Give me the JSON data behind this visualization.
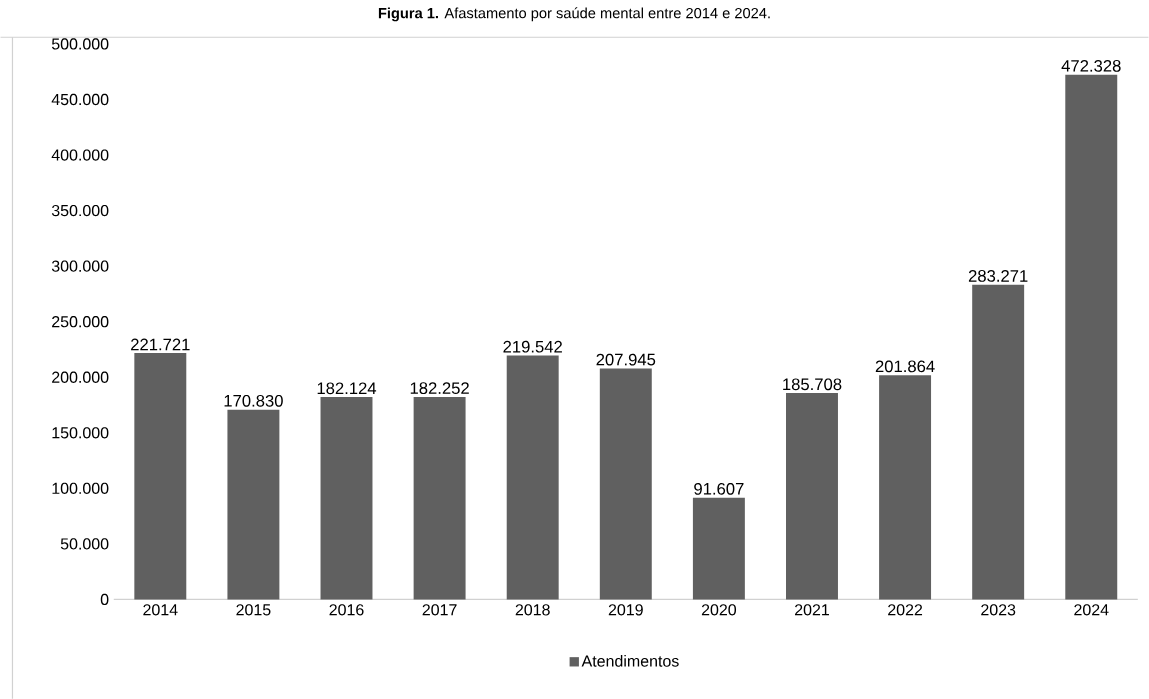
{
  "chart_data": {
    "type": "bar",
    "title": "**Figura 1.** Afastamento por saúde mental entre 2014 e 2024.",
    "categories": [
      "2014",
      "2015",
      "2016",
      "2017",
      "2018",
      "2019",
      "2020",
      "2021",
      "2022",
      "2023",
      "2024"
    ],
    "series": [
      {
        "name": "Atendimentos",
        "color": "#606060",
        "values": [
          221721,
          170830,
          182124,
          182252,
          219542,
          207945,
          91607,
          185708,
          201864,
          283271,
          472328
        ],
        "value_labels": [
          "221.721",
          "170.830",
          "182.124",
          "182.252",
          "219.542",
          "207.945",
          "91.607",
          "185.708",
          "201.864",
          "283.271",
          "472.328"
        ]
      }
    ],
    "ylim": [
      0,
      500000
    ],
    "yticks": [
      0,
      {
        "value": 50000,
        "label": "50.000"
      },
      {
        "value": 100000,
        "label": "100.000"
      },
      {
        "value": 150000,
        "label": "150.000"
      },
      {
        "value": 200000,
        "label": "200.000"
      },
      {
        "value": 250000,
        "label": "250.000"
      },
      {
        "value": 300000,
        "label": "300.000"
      },
      {
        "value": 350000,
        "label": "350.000"
      },
      {
        "value": 400000,
        "label": "400.000"
      },
      {
        "value": 450000,
        "label": "450.000"
      },
      {
        "value": 500000,
        "label": "500.000"
      }
    ],
    "legend": "bottom",
    "grid": false
  }
}
